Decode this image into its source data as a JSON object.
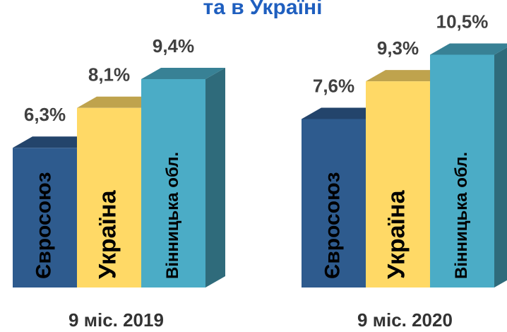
{
  "chart_data": {
    "type": "bar3d",
    "title": "та в Україні",
    "categories": [
      "9 міс. 2019",
      "9 міс. 2020"
    ],
    "series": [
      {
        "name": "Євросоюз",
        "color": "#2e5b8e",
        "values": [
          6.3,
          7.6
        ],
        "value_labels": [
          "6,3%",
          "7,6%"
        ]
      },
      {
        "name": "Україна",
        "color": "#ffd966",
        "values": [
          8.1,
          9.3
        ],
        "value_labels": [
          "8,1%",
          "9,3%"
        ]
      },
      {
        "name": "Вінницька обл.",
        "color": "#4bacc6",
        "values": [
          9.4,
          10.5
        ],
        "value_labels": [
          "9,4%",
          "10,5%"
        ]
      }
    ],
    "ylim": [
      0,
      13
    ]
  }
}
